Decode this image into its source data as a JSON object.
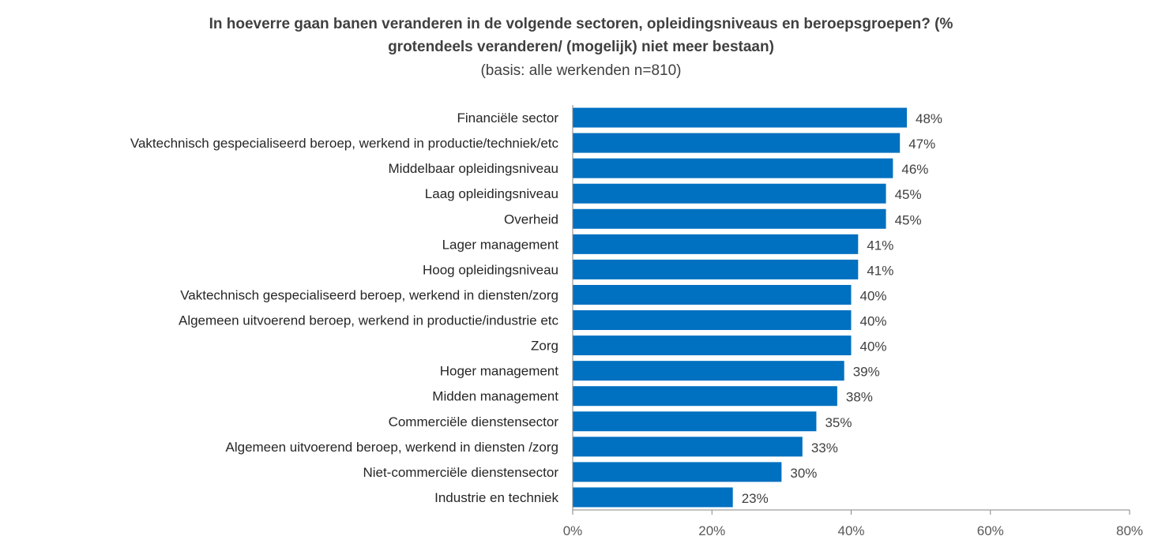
{
  "chart_data": {
    "type": "bar",
    "orientation": "horizontal",
    "title_line1": "In hoeverre gaan banen veranderen in de volgende sectoren, opleidingsniveaus  en beroepsgroepen? (%",
    "title_line2": "grotendeels veranderen/ (mogelijk) niet meer bestaan)",
    "subtitle": "(basis: alle werkenden n=810)",
    "categories": [
      "Financiële sector",
      "Vaktechnisch gespecialiseerd beroep, werkend in productie/techniek/etc",
      "Middelbaar opleidingsniveau",
      "Laag opleidingsniveau",
      "Overheid",
      "Lager management",
      "Hoog opleidingsniveau",
      "Vaktechnisch gespecialiseerd beroep, werkend in diensten/zorg",
      "Algemeen uitvoerend beroep, werkend in productie/industrie etc",
      "Zorg",
      "Hoger management",
      "Midden management",
      "Commerciële dienstensector",
      "Algemeen uitvoerend beroep, werkend in diensten /zorg",
      "Niet-commerciële dienstensector",
      "Industrie en techniek"
    ],
    "values": [
      48,
      47,
      46,
      45,
      45,
      41,
      41,
      40,
      40,
      40,
      39,
      38,
      35,
      33,
      30,
      23
    ],
    "value_labels": [
      "48%",
      "47%",
      "46%",
      "45%",
      "45%",
      "41%",
      "41%",
      "40%",
      "40%",
      "40%",
      "39%",
      "38%",
      "35%",
      "33%",
      "30%",
      "23%"
    ],
    "xlim": [
      0,
      80
    ],
    "xticks": [
      0,
      20,
      40,
      60,
      80
    ],
    "xtick_labels": [
      "0%",
      "20%",
      "40%",
      "60%",
      "80%"
    ],
    "grid": false,
    "legend": "none",
    "bar_color": "#0070C0",
    "axis_color": "#868686"
  }
}
